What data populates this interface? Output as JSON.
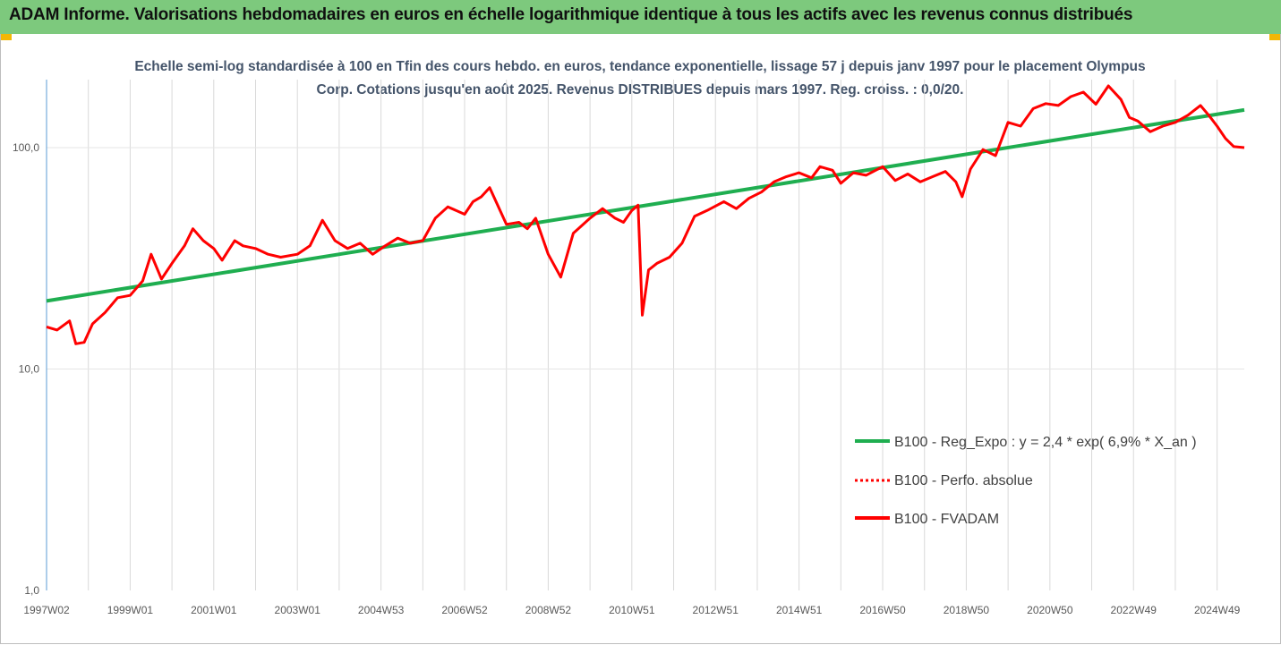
{
  "banner": {
    "title": "ADAM Informe. Valorisations hebdomadaires en euros en échelle logarithmique identique à tous les actifs avec les revenus connus distribués"
  },
  "colors": {
    "banner_bg": "#7dc97d",
    "regression": "#1fae50",
    "fvadam": "#ff0000",
    "perfo": "#ff0000",
    "gridline": "#d9d9d9"
  },
  "chart_data": {
    "type": "line",
    "title": "Echelle semi-log standardisée à 100 en Tfin des cours hebdo. en euros, tendance exponentielle, lissage 57 j depuis janv 1997 pour le placement Olympus Corp. Cotations jusqu'en août 2025. Revenus DISTRIBUES depuis mars 1997. Reg. croiss. : 0,0/20.",
    "y_scale": "log",
    "ylim": [
      1,
      200
    ],
    "y_ticks": [
      "1,0",
      "10,0",
      "100,0"
    ],
    "xlim": [
      1997.0,
      2025.65
    ],
    "x_ticks": [
      {
        "t": 1997.0,
        "label": "1997W02"
      },
      {
        "t": 1999.0,
        "label": "1999W01"
      },
      {
        "t": 2001.0,
        "label": "2001W01"
      },
      {
        "t": 2003.0,
        "label": "2003W01"
      },
      {
        "t": 2005.0,
        "label": "2004W53"
      },
      {
        "t": 2007.0,
        "label": "2006W52"
      },
      {
        "t": 2009.0,
        "label": "2008W52"
      },
      {
        "t": 2011.0,
        "label": "2010W51"
      },
      {
        "t": 2013.0,
        "label": "2012W51"
      },
      {
        "t": 2015.0,
        "label": "2014W51"
      },
      {
        "t": 2017.0,
        "label": "2016W50"
      },
      {
        "t": 2019.0,
        "label": "2018W50"
      },
      {
        "t": 2021.0,
        "label": "2020W50"
      },
      {
        "t": 2023.0,
        "label": "2022W49"
      },
      {
        "t": 2025.0,
        "label": "2024W49"
      }
    ],
    "grid": "vertical",
    "legend": "bottom-right",
    "series": [
      {
        "name": "B100 - Reg_Expo : y = 2,4 * exp( 6,9% *  X_an )",
        "style": "line",
        "x": [
          1997.0,
          2025.65
        ],
        "y": [
          20.3,
          148
        ]
      },
      {
        "name": "B100 - Perfo. absolue",
        "style": "dotted",
        "x": [],
        "y": []
      },
      {
        "name": "B100 - FVADAM",
        "style": "line",
        "x": [
          1997.0,
          1997.25,
          1997.55,
          1997.7,
          1997.9,
          1998.1,
          1998.4,
          1998.7,
          1999.0,
          1999.3,
          1999.5,
          1999.75,
          2000.0,
          2000.3,
          2000.5,
          2000.75,
          2001.0,
          2001.2,
          2001.5,
          2001.7,
          2002.0,
          2002.3,
          2002.6,
          2003.0,
          2003.3,
          2003.6,
          2003.9,
          2004.2,
          2004.5,
          2004.8,
          2005.1,
          2005.4,
          2005.7,
          2006.0,
          2006.3,
          2006.6,
          2007.0,
          2007.2,
          2007.4,
          2007.6,
          2008.0,
          2008.3,
          2008.5,
          2008.7,
          2009.0,
          2009.3,
          2009.6,
          2010.0,
          2010.3,
          2010.6,
          2010.8,
          2011.0,
          2011.15,
          2011.25,
          2011.4,
          2011.6,
          2011.9,
          2012.2,
          2012.5,
          2012.8,
          2013.2,
          2013.5,
          2013.8,
          2014.1,
          2014.4,
          2014.7,
          2015.0,
          2015.3,
          2015.5,
          2015.8,
          2016.0,
          2016.3,
          2016.6,
          2017.0,
          2017.3,
          2017.6,
          2017.9,
          2018.2,
          2018.5,
          2018.75,
          2018.9,
          2019.1,
          2019.4,
          2019.7,
          2020.0,
          2020.3,
          2020.6,
          2020.9,
          2021.2,
          2021.5,
          2021.8,
          2022.1,
          2022.4,
          2022.7,
          2022.9,
          2023.1,
          2023.4,
          2023.7,
          2024.0,
          2024.3,
          2024.6,
          2024.8,
          2025.0,
          2025.2,
          2025.4,
          2025.65
        ],
        "y": [
          15.5,
          15.0,
          16.5,
          13.0,
          13.2,
          16.0,
          18.0,
          21.0,
          21.5,
          25.0,
          33.0,
          25.5,
          30.0,
          36.0,
          43.0,
          38.0,
          35.0,
          31.0,
          38.0,
          36.0,
          35.0,
          33.0,
          32.0,
          33.0,
          36.0,
          47.0,
          38.0,
          35.0,
          37.0,
          33.0,
          36.0,
          39.0,
          37.0,
          38.0,
          48.0,
          54.0,
          50.0,
          57.0,
          60.0,
          66.0,
          45.0,
          46.0,
          43.0,
          48.0,
          33.0,
          26.0,
          41.0,
          48.0,
          53.0,
          48.0,
          46.0,
          52.0,
          55.0,
          17.5,
          28.0,
          30.0,
          32.0,
          37.0,
          49.0,
          52.0,
          57.0,
          53.0,
          59.0,
          63.0,
          70.0,
          74.0,
          77.0,
          73.0,
          82.0,
          79.0,
          69.0,
          77.0,
          75.0,
          82.0,
          71.0,
          76.0,
          70.0,
          74.0,
          78.0,
          70.0,
          60.0,
          80.0,
          98.0,
          92.0,
          130.0,
          125.0,
          150.0,
          158.0,
          155.0,
          170.0,
          178.0,
          157.0,
          190.0,
          165.0,
          137.0,
          132.0,
          118.0,
          125.0,
          130.0,
          140.0,
          155.0,
          140.0,
          125.0,
          110.0,
          101.0,
          100.0
        ]
      }
    ]
  }
}
